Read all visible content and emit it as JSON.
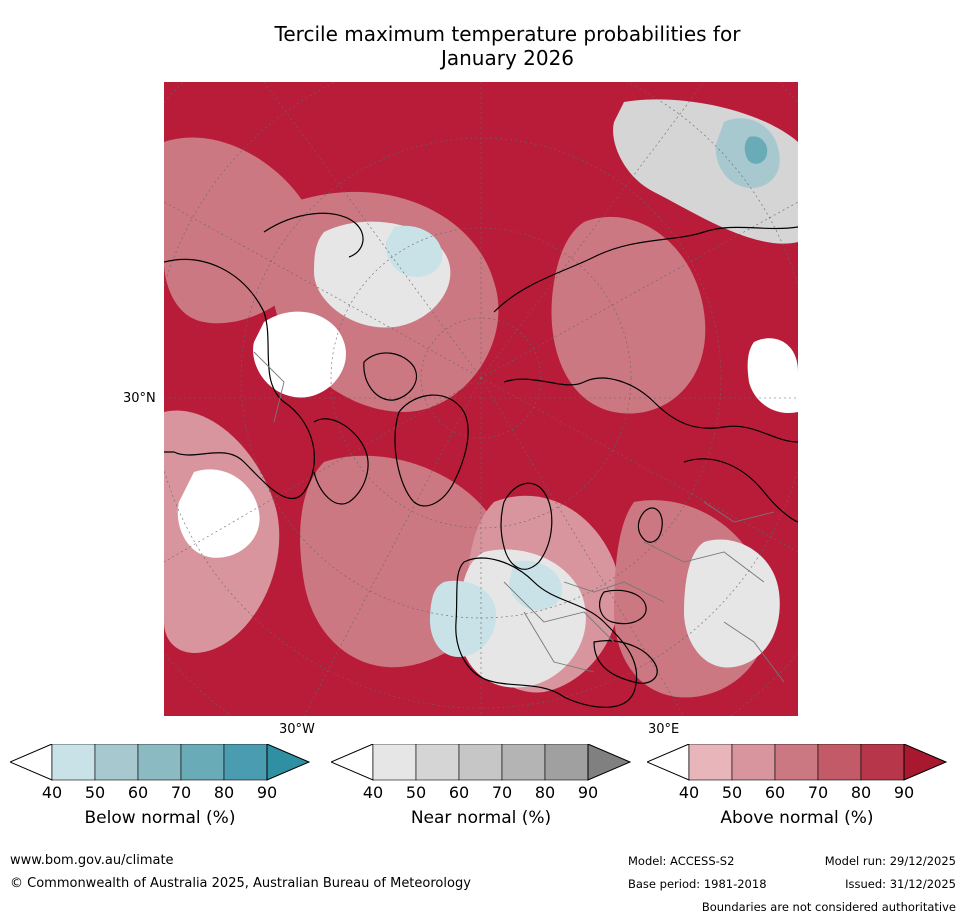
{
  "title_line1": "Tercile maximum temperature probabilities for",
  "title_line2": "January 2026",
  "map": {
    "lat_label": "30°N",
    "lon_label_west": "30°W",
    "lon_label_east": "30°E"
  },
  "colorbars": [
    {
      "label": "Below normal (%)",
      "ticks": [
        "40",
        "50",
        "60",
        "70",
        "80",
        "90"
      ],
      "colors": [
        "#ffffff",
        "#c9e2e8",
        "#a8c8cf",
        "#8bbac3",
        "#6aabb8",
        "#4a9db0",
        "#2f8fa3"
      ]
    },
    {
      "label": "Near normal (%)",
      "ticks": [
        "40",
        "50",
        "60",
        "70",
        "80",
        "90"
      ],
      "colors": [
        "#ffffff",
        "#e6e6e6",
        "#d5d5d5",
        "#c6c6c6",
        "#b4b4b4",
        "#a0a0a0",
        "#808080"
      ]
    },
    {
      "label": "Above normal (%)",
      "ticks": [
        "40",
        "50",
        "60",
        "70",
        "80",
        "90"
      ],
      "colors": [
        "#ffffff",
        "#e8b5bb",
        "#d9959e",
        "#cc7882",
        "#c25a67",
        "#b8364a",
        "#a8182e"
      ]
    }
  ],
  "footer": {
    "website": "www.bom.gov.au/climate",
    "copyright": "© Commonwealth of Australia 2025, Australian Bureau of Meteorology",
    "model": "Model: ACCESS-S2",
    "base_period": "Base period: 1981-2018",
    "model_run": "Model run: 29/12/2025",
    "issued": "Issued: 31/12/2025",
    "disclaimer": "Boundaries are not considered authoritative"
  }
}
